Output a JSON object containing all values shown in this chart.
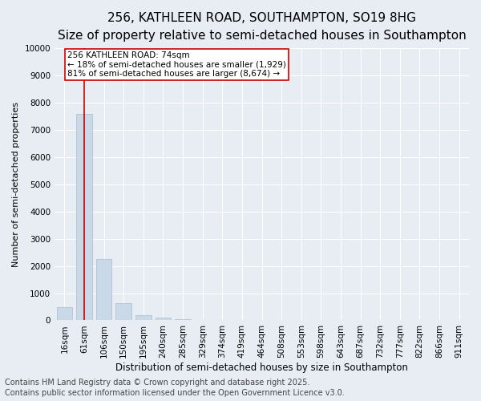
{
  "title_line1": "256, KATHLEEN ROAD, SOUTHAMPTON, SO19 8HG",
  "title_line2": "Size of property relative to semi-detached houses in Southampton",
  "xlabel": "Distribution of semi-detached houses by size in Southampton",
  "ylabel": "Number of semi-detached properties",
  "categories": [
    "16sqm",
    "61sqm",
    "106sqm",
    "150sqm",
    "195sqm",
    "240sqm",
    "285sqm",
    "329sqm",
    "374sqm",
    "419sqm",
    "464sqm",
    "508sqm",
    "553sqm",
    "598sqm",
    "643sqm",
    "687sqm",
    "732sqm",
    "777sqm",
    "822sqm",
    "866sqm",
    "911sqm"
  ],
  "values": [
    480,
    7600,
    2250,
    620,
    180,
    100,
    30,
    0,
    0,
    0,
    0,
    0,
    0,
    0,
    0,
    0,
    0,
    0,
    0,
    0,
    0
  ],
  "bar_color": "#c9d9e8",
  "bar_edge_color": "#aabccc",
  "vline_x": 1,
  "vline_color": "#cc0000",
  "annotation_text": "256 KATHLEEN ROAD: 74sqm\n← 18% of semi-detached houses are smaller (1,929)\n81% of semi-detached houses are larger (8,674) →",
  "annotation_box_color": "white",
  "annotation_box_edge": "#cc0000",
  "ylim": [
    0,
    10000
  ],
  "yticks": [
    0,
    1000,
    2000,
    3000,
    4000,
    5000,
    6000,
    7000,
    8000,
    9000,
    10000
  ],
  "bg_color": "#e8edf4",
  "plot_bg_color": "#e8edf4",
  "footer_line1": "Contains HM Land Registry data © Crown copyright and database right 2025.",
  "footer_line2": "Contains public sector information licensed under the Open Government Licence v3.0.",
  "title1_fontsize": 11,
  "title2_fontsize": 9,
  "footer_fontsize": 7,
  "grid_color": "white",
  "tick_fontsize": 7.5,
  "ylabel_fontsize": 8,
  "xlabel_fontsize": 8.5
}
